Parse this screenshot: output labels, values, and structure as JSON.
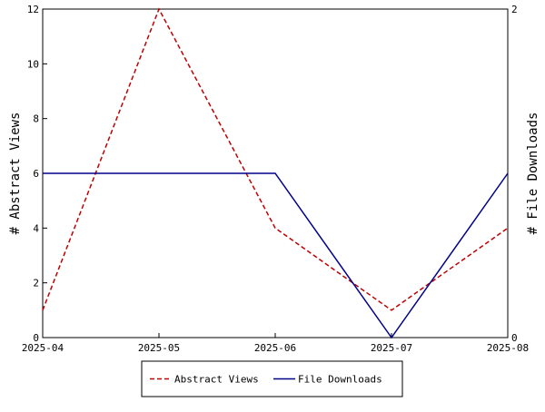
{
  "chart_data": {
    "type": "line",
    "title": "",
    "x": [
      "2025-04",
      "2025-05",
      "2025-06",
      "2025-07",
      "2025-08"
    ],
    "xlim": [
      "2025-04",
      "2025-08"
    ],
    "y_left": {
      "label": "# Abstract Views",
      "ylim": [
        0,
        12
      ],
      "ticks": [
        0,
        2,
        4,
        6,
        8,
        10,
        12
      ]
    },
    "y_right": {
      "label": "# File Downloads",
      "ylim": [
        0,
        2
      ],
      "ticks": [
        0,
        2
      ]
    },
    "series": [
      {
        "name": "Abstract Views",
        "axis": "left",
        "values": [
          1,
          12,
          4,
          1,
          4
        ],
        "color": "#c00000",
        "dash": true
      },
      {
        "name": "File Downloads",
        "axis": "right",
        "values": [
          1,
          1,
          1,
          0,
          1
        ],
        "color": "#00008b",
        "dash": false
      }
    ],
    "grid": false,
    "legend": "bottom-center"
  }
}
